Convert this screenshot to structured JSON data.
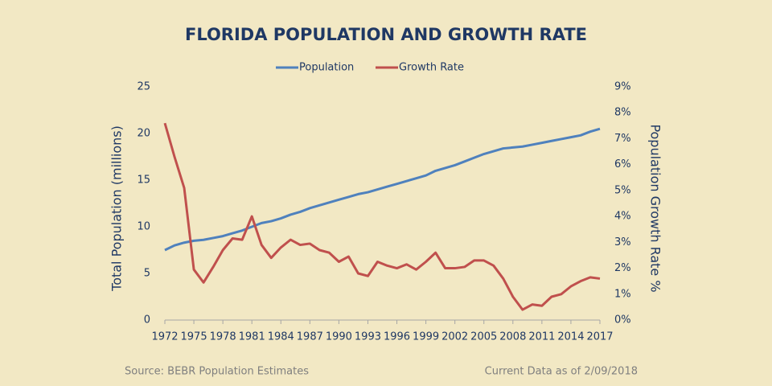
{
  "chart_data": {
    "type": "line",
    "title": "FLORIDA POPULATION AND GROWTH RATE",
    "y_label": "Total Population (millions)",
    "y2_label": "Population Growth Rate %",
    "source": "Source:  BEBR Population Estimates",
    "note": "Current  Data as of 2/09/2018",
    "x": [
      1972,
      1973,
      1974,
      1975,
      1976,
      1977,
      1978,
      1979,
      1980,
      1981,
      1982,
      1983,
      1984,
      1985,
      1986,
      1987,
      1988,
      1989,
      1990,
      1991,
      1992,
      1993,
      1994,
      1995,
      1996,
      1997,
      1998,
      1999,
      2000,
      2001,
      2002,
      2003,
      2004,
      2005,
      2006,
      2007,
      2008,
      2009,
      2010,
      2011,
      2012,
      2013,
      2014,
      2015,
      2016,
      2017
    ],
    "xlim": [
      1972,
      2017
    ],
    "xticks": [
      1972,
      1975,
      1978,
      1981,
      1984,
      1987,
      1990,
      1993,
      1996,
      1999,
      2002,
      2005,
      2008,
      2011,
      2014,
      2017
    ],
    "ylim": [
      0,
      25
    ],
    "yticks": [
      0,
      5,
      10,
      15,
      20,
      25
    ],
    "y2lim": [
      0,
      9
    ],
    "y2ticks": [
      {
        "value": 0,
        "label": "0%"
      },
      {
        "value": 1,
        "label": "1%"
      },
      {
        "value": 2,
        "label": "2%"
      },
      {
        "value": 3,
        "label": "3%"
      },
      {
        "value": 4,
        "label": "4%"
      },
      {
        "value": 5,
        "label": "5%"
      },
      {
        "value": 6,
        "label": "6%"
      },
      {
        "value": 7,
        "label": "7%"
      },
      {
        "value": 8,
        "label": "8%"
      },
      {
        "value": 9,
        "label": "9%"
      }
    ],
    "legend": "top",
    "series": [
      {
        "name": "Population",
        "color": "#4f81bd",
        "values": [
          7.5,
          8.0,
          8.3,
          8.5,
          8.6,
          8.8,
          9.0,
          9.3,
          9.6,
          10.0,
          10.4,
          10.6,
          10.9,
          11.3,
          11.6,
          12.0,
          12.3,
          12.6,
          12.9,
          13.2,
          13.5,
          13.7,
          14.0,
          14.3,
          14.6,
          14.9,
          15.2,
          15.5,
          16.0,
          16.3,
          16.6,
          17.0,
          17.4,
          17.8,
          18.1,
          18.4,
          18.5,
          18.6,
          18.8,
          19.0,
          19.2,
          19.4,
          19.6,
          19.8,
          20.2,
          20.5
        ]
      },
      {
        "name": "Growth Rate",
        "color": "#c0504d",
        "axis": "y2",
        "values": [
          7.6,
          6.3,
          5.1,
          1.95,
          1.45,
          2.05,
          2.7,
          3.15,
          3.1,
          4.0,
          2.9,
          2.4,
          2.8,
          3.1,
          2.9,
          2.95,
          2.7,
          2.6,
          2.25,
          2.45,
          1.8,
          1.7,
          2.25,
          2.1,
          2.0,
          2.15,
          1.95,
          2.25,
          2.6,
          2.0,
          2.0,
          2.05,
          2.3,
          2.3,
          2.1,
          1.6,
          0.9,
          0.4,
          0.6,
          0.55,
          0.9,
          1.0,
          1.3,
          1.5,
          1.65,
          1.6
        ]
      }
    ]
  }
}
